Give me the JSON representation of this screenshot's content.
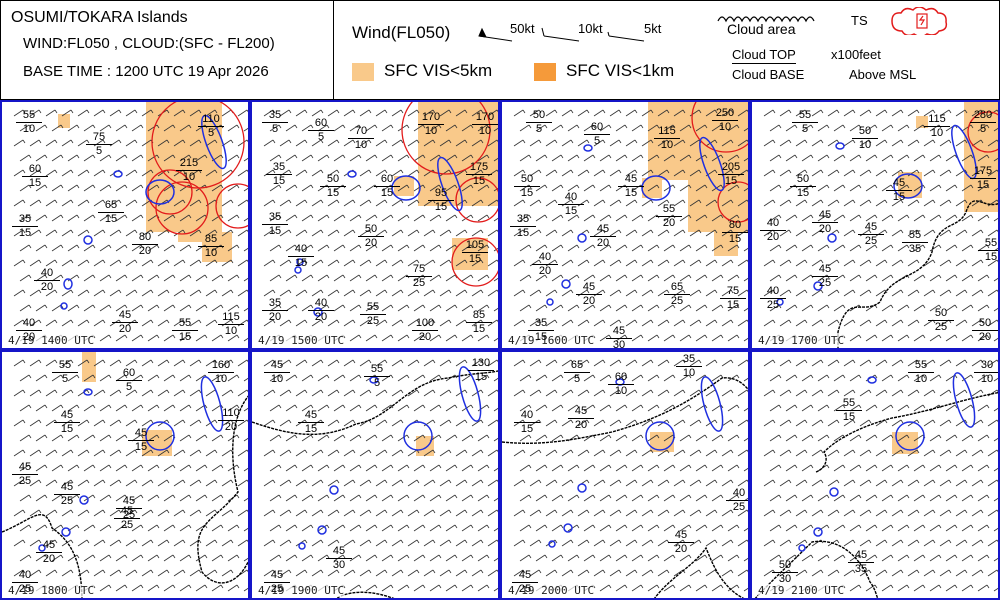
{
  "title": {
    "line1": "OSUMI/TOKARA Islands",
    "line2": "WIND:FL050 , CLOUD:(SFC - FL200)",
    "line3": "BASE TIME : 1200 UTC 19 Apr 2026"
  },
  "legend": {
    "wind_title": "Wind(FL050)",
    "barb_50": "50kt",
    "barb_10": "10kt",
    "barb_5": "5kt",
    "cloud_area": "Cloud area",
    "ts": "TS",
    "vis5": "SFC VIS<5km",
    "vis1": "SFC VIS<1km",
    "cloud_top": "Cloud TOP",
    "cloud_base": "Cloud BASE",
    "unit": "x100feet",
    "msl": "Above MSL",
    "colors": {
      "vis5": "#f9c98a",
      "vis1": "#f59a3a",
      "ts": "#e21b1b",
      "island": "#1f2fe0",
      "cloud": "#000000",
      "frame": "#1515c8"
    }
  },
  "panels": [
    {
      "time": "4/19 1400 UTC",
      "labels": [
        {
          "t": "55",
          "b": "10"
        },
        {
          "t": "75",
          "b": "5"
        },
        {
          "t": "110",
          "b": "5"
        },
        {
          "t": "60",
          "b": "15"
        },
        {
          "t": "215",
          "b": "10"
        },
        {
          "t": "65",
          "b": "15"
        },
        {
          "t": "35",
          "b": "15"
        },
        {
          "t": "80",
          "b": "20"
        },
        {
          "t": "85",
          "b": "10"
        },
        {
          "t": "40",
          "b": "20"
        },
        {
          "t": "45",
          "b": "20"
        },
        {
          "t": "55",
          "b": "15"
        },
        {
          "t": "115",
          "b": "10"
        },
        {
          "t": "40",
          "b": "20"
        }
      ]
    },
    {
      "time": "4/19 1500 UTC",
      "labels": [
        {
          "t": "35",
          "b": "5"
        },
        {
          "t": "60",
          "b": "5"
        },
        {
          "t": "70",
          "b": "10"
        },
        {
          "t": "170",
          "b": "10"
        },
        {
          "t": "170",
          "b": "10"
        },
        {
          "t": "35",
          "b": "15"
        },
        {
          "t": "50",
          "b": "15"
        },
        {
          "t": "60",
          "b": "15"
        },
        {
          "t": "175",
          "b": "15"
        },
        {
          "t": "95",
          "b": "15"
        },
        {
          "t": "35",
          "b": "15"
        },
        {
          "t": "50",
          "b": "20"
        },
        {
          "t": "40",
          "b": "15"
        },
        {
          "t": "105",
          "b": "15"
        },
        {
          "t": "75",
          "b": "25"
        },
        {
          "t": "35",
          "b": "20"
        },
        {
          "t": "40",
          "b": "20"
        },
        {
          "t": "55",
          "b": "25"
        },
        {
          "t": "100",
          "b": "20"
        },
        {
          "t": "85",
          "b": "15"
        }
      ]
    },
    {
      "time": "4/19 1600 UTC",
      "labels": [
        {
          "t": "50",
          "b": "5"
        },
        {
          "t": "60",
          "b": "5"
        },
        {
          "t": "115",
          "b": "10"
        },
        {
          "t": "250",
          "b": "10"
        },
        {
          "t": "50",
          "b": "15"
        },
        {
          "t": "45",
          "b": "15"
        },
        {
          "t": "205",
          "b": "15"
        },
        {
          "t": "40",
          "b": "15"
        },
        {
          "t": "55",
          "b": "20"
        },
        {
          "t": "35",
          "b": "15"
        },
        {
          "t": "45",
          "b": "20"
        },
        {
          "t": "80",
          "b": "15"
        },
        {
          "t": "40",
          "b": "20"
        },
        {
          "t": "45",
          "b": "20"
        },
        {
          "t": "65",
          "b": "25"
        },
        {
          "t": "75",
          "b": "15"
        },
        {
          "t": "35",
          "b": "15"
        },
        {
          "t": "45",
          "b": "30"
        }
      ]
    },
    {
      "time": "4/19 1700 UTC",
      "labels": [
        {
          "t": "55",
          "b": "5"
        },
        {
          "t": "115",
          "b": "10"
        },
        {
          "t": "280",
          "b": "5"
        },
        {
          "t": "50",
          "b": "10"
        },
        {
          "t": "50",
          "b": "15"
        },
        {
          "t": "45",
          "b": "15"
        },
        {
          "t": "175",
          "b": "15"
        },
        {
          "t": "40",
          "b": "20"
        },
        {
          "t": "45",
          "b": "20"
        },
        {
          "t": "45",
          "b": "25"
        },
        {
          "t": "55",
          "b": "35"
        },
        {
          "t": "55",
          "b": "15"
        },
        {
          "t": "45",
          "b": "25"
        },
        {
          "t": "40",
          "b": "25"
        },
        {
          "t": "50",
          "b": "25"
        },
        {
          "t": "50",
          "b": "20"
        }
      ]
    },
    {
      "time": "4/19 1800 UTC",
      "labels": [
        {
          "t": "55",
          "b": "5"
        },
        {
          "t": "60",
          "b": "5"
        },
        {
          "t": "160",
          "b": "10"
        },
        {
          "t": "45",
          "b": "15"
        },
        {
          "t": "110",
          "b": "20"
        },
        {
          "t": "45",
          "b": "15"
        },
        {
          "t": "45",
          "b": "25"
        },
        {
          "t": "45",
          "b": "25"
        },
        {
          "t": "45",
          "b": "25"
        },
        {
          "t": "45",
          "b": "25"
        },
        {
          "t": "45",
          "b": "20"
        },
        {
          "t": "40",
          "b": "25"
        }
      ]
    },
    {
      "time": "4/19 1900 UTC",
      "labels": [
        {
          "t": "45",
          "b": "10"
        },
        {
          "t": "55",
          "b": "5"
        },
        {
          "t": "130",
          "b": "15"
        },
        {
          "t": "45",
          "b": "15"
        },
        {
          "t": "45",
          "b": "30"
        },
        {
          "t": "45",
          "b": "25"
        }
      ]
    },
    {
      "time": "4/19 2000 UTC",
      "labels": [
        {
          "t": "65",
          "b": "5"
        },
        {
          "t": "35",
          "b": "10"
        },
        {
          "t": "60",
          "b": "10"
        },
        {
          "t": "45",
          "b": "20"
        },
        {
          "t": "40",
          "b": "15"
        },
        {
          "t": "40",
          "b": "25"
        },
        {
          "t": "45",
          "b": "20"
        },
        {
          "t": "45",
          "b": "25"
        }
      ]
    },
    {
      "time": "4/19 2100 UTC",
      "labels": [
        {
          "t": "55",
          "b": "10"
        },
        {
          "t": "30",
          "b": "10"
        },
        {
          "t": "55",
          "b": "15"
        },
        {
          "t": "45",
          "b": "35"
        },
        {
          "t": "50",
          "b": "30"
        }
      ]
    }
  ]
}
